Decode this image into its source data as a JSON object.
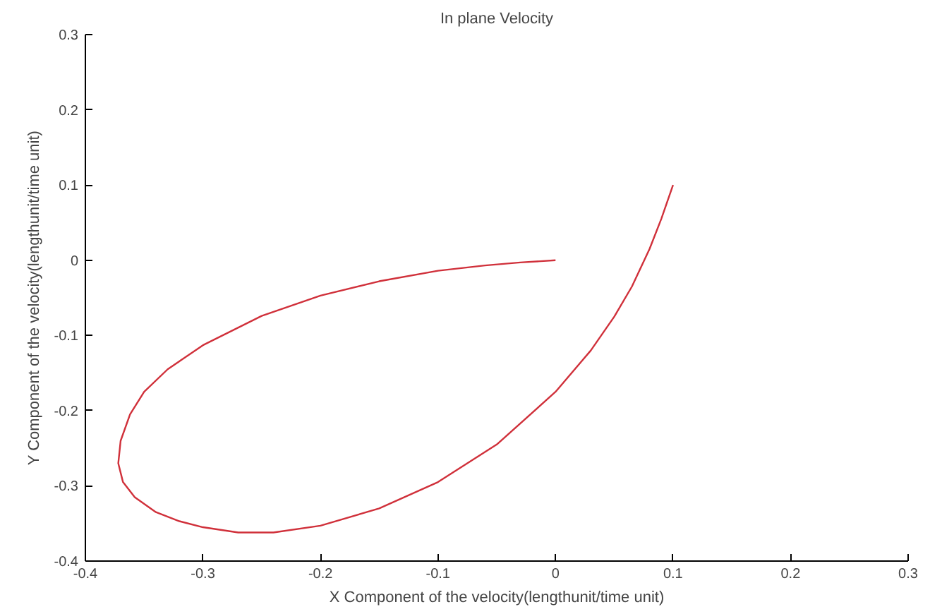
{
  "chart_data": {
    "type": "line",
    "title": "In plane Velocity",
    "xlabel": "X Component of the velocity(lengthunit/time unit)",
    "ylabel": "Y Component of the velocity(lengthunit/time unit)",
    "x": [
      0,
      -0.03,
      -0.06,
      -0.1,
      -0.15,
      -0.2,
      -0.25,
      -0.3,
      -0.33,
      -0.35,
      -0.362,
      -0.37,
      -0.372,
      -0.368,
      -0.358,
      -0.34,
      -0.32,
      -0.3,
      -0.27,
      -0.24,
      -0.2,
      -0.15,
      -0.1,
      -0.05,
      0,
      0.03,
      0.05,
      0.065,
      0.08,
      0.09,
      0.1
    ],
    "series": [
      {
        "color": "#d0303a",
        "values": [
          0,
          -0.003,
          -0.007,
          -0.014,
          -0.028,
          -0.047,
          -0.074,
          -0.113,
          -0.145,
          -0.175,
          -0.205,
          -0.24,
          -0.27,
          -0.295,
          -0.315,
          -0.335,
          -0.347,
          -0.355,
          -0.362,
          -0.362,
          -0.353,
          -0.33,
          -0.295,
          -0.245,
          -0.175,
          -0.12,
          -0.075,
          -0.035,
          0.015,
          0.055,
          0.1
        ]
      }
    ],
    "xlim": [
      -0.4,
      0.3
    ],
    "ylim": [
      -0.4,
      0.3
    ],
    "xticks": [
      -0.4,
      -0.3,
      -0.2,
      -0.1,
      0,
      0.1,
      0.2,
      0.3
    ],
    "yticks": [
      -0.4,
      -0.3,
      -0.2,
      -0.1,
      0,
      0.1,
      0.2,
      0.3
    ],
    "grid": false
  }
}
